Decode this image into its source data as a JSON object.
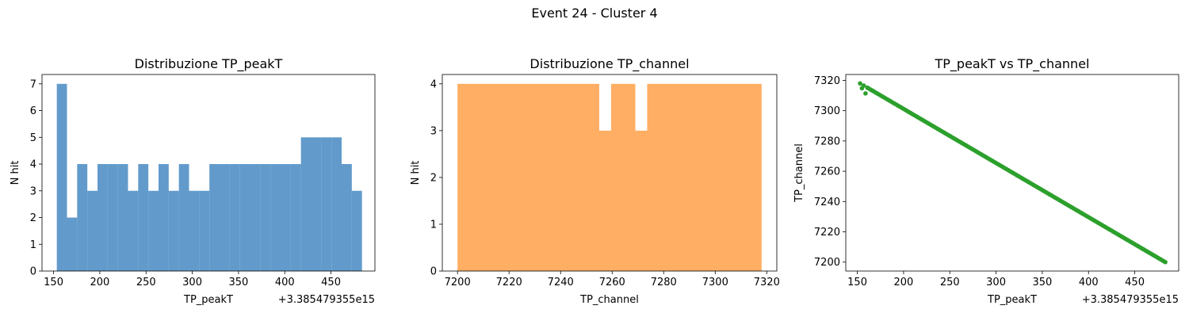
{
  "suptitle": "Event 24 - Cluster 4",
  "chart_data": [
    {
      "type": "bar",
      "title": "Distribuzione TP_peakT",
      "xlabel": "TP_peakT",
      "ylabel": "N hit",
      "offset_label": "+3.385479355e15",
      "color": "#3b82be",
      "xlim": [
        137.5,
        497.5
      ],
      "ylim": [
        0,
        7.35
      ],
      "xticks": [
        150,
        200,
        250,
        300,
        350,
        400,
        450
      ],
      "yticks": [
        0,
        1,
        2,
        3,
        4,
        5,
        6,
        7
      ],
      "bins": [
        {
          "x0": 153.5,
          "x1": 164.5,
          "count": 7
        },
        {
          "x0": 164.5,
          "x1": 175.5,
          "count": 2
        },
        {
          "x0": 175.5,
          "x1": 186.5,
          "count": 4
        },
        {
          "x0": 186.5,
          "x1": 197.5,
          "count": 3
        },
        {
          "x0": 197.5,
          "x1": 208.5,
          "count": 4
        },
        {
          "x0": 208.5,
          "x1": 219.5,
          "count": 4
        },
        {
          "x0": 219.5,
          "x1": 230.5,
          "count": 4
        },
        {
          "x0": 230.5,
          "x1": 241.5,
          "count": 3
        },
        {
          "x0": 241.5,
          "x1": 252.5,
          "count": 4
        },
        {
          "x0": 252.5,
          "x1": 263.5,
          "count": 3
        },
        {
          "x0": 263.5,
          "x1": 274.5,
          "count": 4
        },
        {
          "x0": 274.5,
          "x1": 285.5,
          "count": 3
        },
        {
          "x0": 285.5,
          "x1": 296.5,
          "count": 4
        },
        {
          "x0": 296.5,
          "x1": 307.5,
          "count": 3
        },
        {
          "x0": 307.5,
          "x1": 318.5,
          "count": 3
        },
        {
          "x0": 318.5,
          "x1": 329.5,
          "count": 4
        },
        {
          "x0": 329.5,
          "x1": 340.5,
          "count": 4
        },
        {
          "x0": 340.5,
          "x1": 351.5,
          "count": 4
        },
        {
          "x0": 351.5,
          "x1": 362.5,
          "count": 4
        },
        {
          "x0": 362.5,
          "x1": 373.5,
          "count": 4
        },
        {
          "x0": 373.5,
          "x1": 384.5,
          "count": 4
        },
        {
          "x0": 384.5,
          "x1": 395.5,
          "count": 4
        },
        {
          "x0": 395.5,
          "x1": 406.5,
          "count": 4
        },
        {
          "x0": 406.5,
          "x1": 417.5,
          "count": 4
        },
        {
          "x0": 417.5,
          "x1": 428.5,
          "count": 5
        },
        {
          "x0": 428.5,
          "x1": 439.5,
          "count": 5
        },
        {
          "x0": 439.5,
          "x1": 450.5,
          "count": 5
        },
        {
          "x0": 450.5,
          "x1": 461.5,
          "count": 5
        },
        {
          "x0": 461.5,
          "x1": 472.5,
          "count": 4
        },
        {
          "x0": 472.5,
          "x1": 483.5,
          "count": 3
        }
      ]
    },
    {
      "type": "bar",
      "title": "Distribuzione TP_channel",
      "xlabel": "TP_channel",
      "ylabel": "N hit",
      "color": "#ff9a3c",
      "xlim": [
        7194.1,
        7323.9
      ],
      "ylim": [
        0,
        4.2
      ],
      "xticks": [
        7200,
        7220,
        7240,
        7260,
        7280,
        7300,
        7320
      ],
      "yticks": [
        0,
        1,
        2,
        3,
        4
      ],
      "bins": [
        {
          "x0": 7200.0,
          "x1": 7255.0,
          "count": 4
        },
        {
          "x0": 7255.0,
          "x1": 7259.6,
          "count": 3
        },
        {
          "x0": 7259.6,
          "x1": 7269.0,
          "count": 4
        },
        {
          "x0": 7269.0,
          "x1": 7273.6,
          "count": 3
        },
        {
          "x0": 7273.6,
          "x1": 7318.0,
          "count": 4
        }
      ]
    },
    {
      "type": "scatter",
      "title": "TP_peakT vs TP_channel",
      "xlabel": "TP_peakT",
      "ylabel": "TP_channel",
      "offset_label": "+3.385479355e15",
      "color": "#2ca02c",
      "xlim": [
        137.5,
        497.5
      ],
      "ylim": [
        7194.1,
        7323.9
      ],
      "xticks": [
        150,
        200,
        250,
        300,
        350,
        400,
        450
      ],
      "yticks": [
        7200,
        7220,
        7240,
        7260,
        7280,
        7300,
        7320
      ],
      "line": {
        "x0": 153,
        "y0": 7318,
        "x1": 483,
        "y1": 7200
      }
    }
  ]
}
